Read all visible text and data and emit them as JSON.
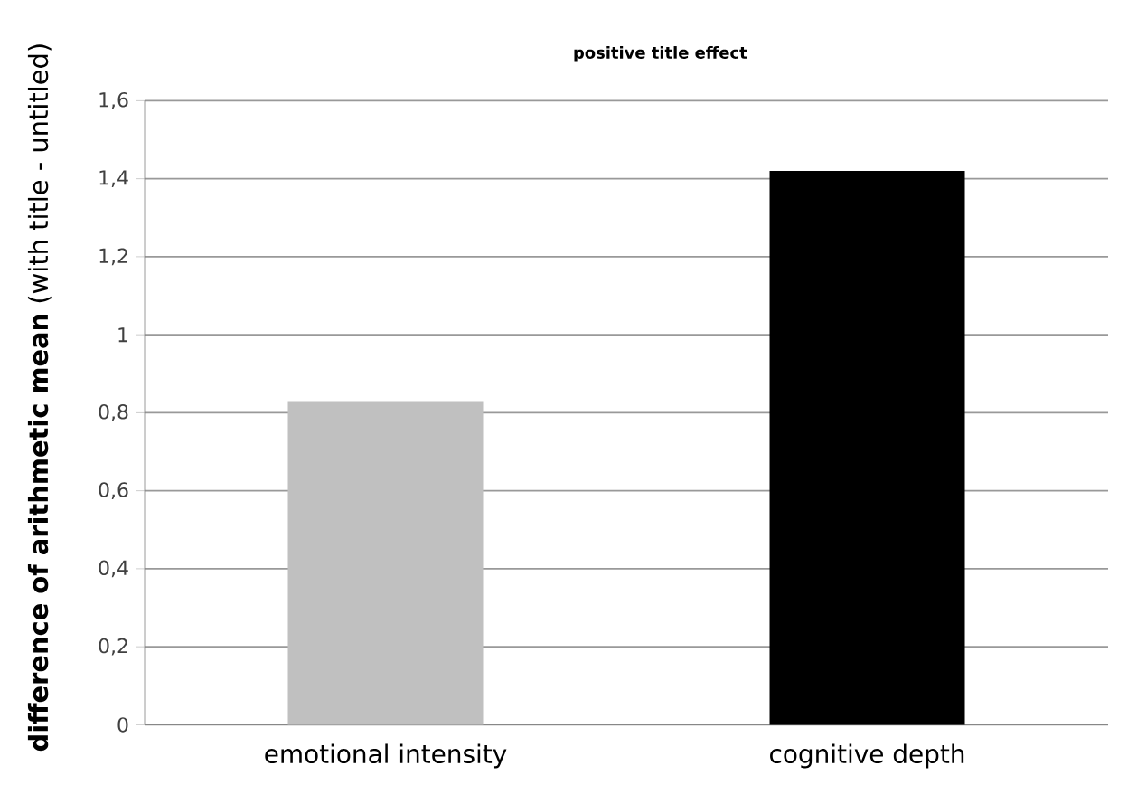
{
  "chart_data": {
    "type": "bar",
    "title": "positive title effect",
    "ylabel": "**difference of arithmetic mean** (with title - untitled)",
    "categories": [
      "emotional intensity",
      "cognitive depth"
    ],
    "values": [
      0.83,
      1.42
    ],
    "colors": [
      "#c0c0c0",
      "#000000"
    ],
    "ylim": [
      0,
      1.6
    ],
    "yticks": [
      0,
      {
        "value": 0.2,
        "label": "0,2"
      },
      {
        "value": 0.4,
        "label": "0,4"
      },
      {
        "value": 0.6,
        "label": "0,6"
      },
      {
        "value": 0.8,
        "label": "0,8"
      },
      1,
      {
        "value": 1.2,
        "label": "1,2"
      },
      {
        "value": 1.4,
        "label": "1,4"
      },
      {
        "value": 1.6,
        "label": "1,6"
      }
    ],
    "grid": "y"
  }
}
